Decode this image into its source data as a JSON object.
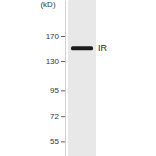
{
  "chart_data": {
    "type": "blot",
    "y_label": "(kD)",
    "log": "y",
    "ylim": [
      47,
      250
    ],
    "yticks": [
      170,
      130,
      95,
      72,
      55
    ],
    "categories": [
      null
    ],
    "series": [
      {
        "name": "IR",
        "color": "#1c1c1c",
        "values": [
          149
        ]
      }
    ]
  }
}
